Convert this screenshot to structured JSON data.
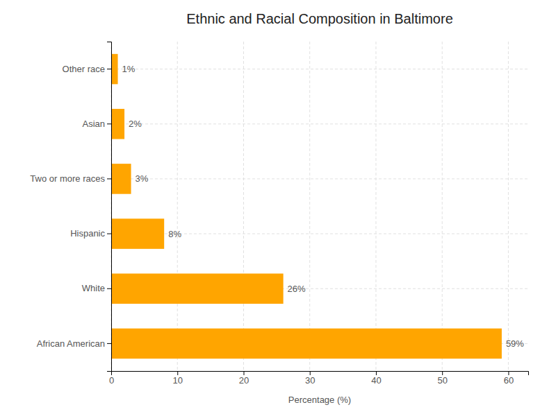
{
  "chart_data": {
    "type": "bar",
    "orientation": "horizontal",
    "title": "Ethnic and Racial Composition in Baltimore",
    "xlabel": "Percentage (%)",
    "categories": [
      "African American",
      "White",
      "Hispanic",
      "Two or more races",
      "Asian",
      "Other race"
    ],
    "values": [
      59,
      26,
      8,
      3,
      2,
      1
    ],
    "value_labels": [
      "59%",
      "26%",
      "8%",
      "3%",
      "2%",
      "1%"
    ],
    "data_labels": true,
    "color": "#FFA500",
    "xlim": [
      0,
      63
    ],
    "xticks": [
      0,
      10,
      20,
      30,
      40,
      50,
      60
    ],
    "grid": true
  }
}
